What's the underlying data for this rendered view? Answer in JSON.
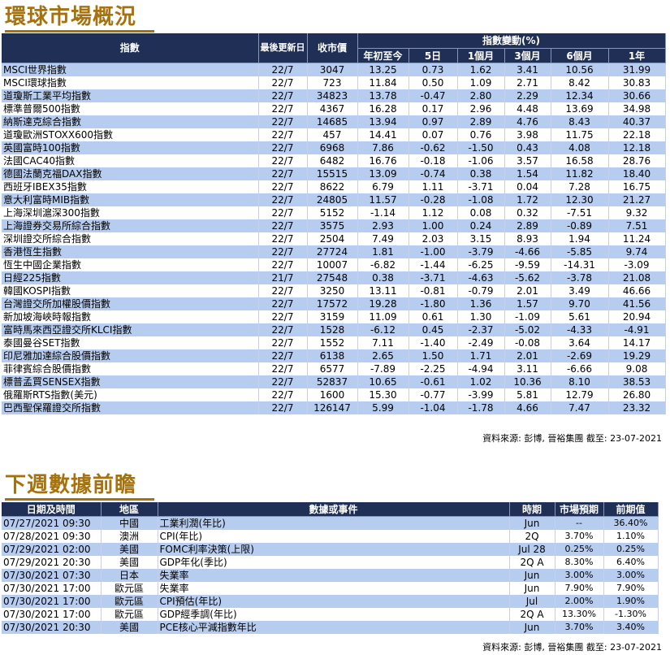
{
  "market": {
    "title": "環球市場概況",
    "headers": {
      "index": "指數",
      "updated": "最後更新日",
      "close": "收市價",
      "change_group": "指數變動(%)",
      "ytd": "年初至今",
      "d5": "5日",
      "m1": "1個月",
      "m3": "3個月",
      "m6": "6個月",
      "y1": "1年"
    },
    "rows": [
      {
        "name": "MSCI世界指數",
        "date": "22/7",
        "close": "3047",
        "ytd": "13.25",
        "d5": "0.73",
        "m1": "1.62",
        "m3": "3.41",
        "m6": "10.56",
        "y1": "31.99"
      },
      {
        "name": "MSCI環球指數",
        "date": "22/7",
        "close": "723",
        "ytd": "11.84",
        "d5": "0.50",
        "m1": "1.09",
        "m3": "2.71",
        "m6": "8.42",
        "y1": "30.83"
      },
      {
        "name": "道瓊斯工業平均指數",
        "date": "22/7",
        "close": "34823",
        "ytd": "13.78",
        "d5": "-0.47",
        "m1": "2.80",
        "m3": "2.29",
        "m6": "12.34",
        "y1": "30.66"
      },
      {
        "name": "標準普爾500指數",
        "date": "22/7",
        "close": "4367",
        "ytd": "16.28",
        "d5": "0.17",
        "m1": "2.96",
        "m3": "4.48",
        "m6": "13.69",
        "y1": "34.98"
      },
      {
        "name": "納斯達克綜合指數",
        "date": "22/7",
        "close": "14685",
        "ytd": "13.94",
        "d5": "0.97",
        "m1": "2.89",
        "m3": "4.76",
        "m6": "8.43",
        "y1": "40.37"
      },
      {
        "name": "道瓊歐洲STOXX600指數",
        "date": "22/7",
        "close": "457",
        "ytd": "14.41",
        "d5": "0.07",
        "m1": "0.76",
        "m3": "3.98",
        "m6": "11.75",
        "y1": "22.18"
      },
      {
        "name": "英國富時100指數",
        "date": "22/7",
        "close": "6968",
        "ytd": "7.86",
        "d5": "-0.62",
        "m1": "-1.50",
        "m3": "0.43",
        "m6": "4.08",
        "y1": "12.18"
      },
      {
        "name": "法國CAC40指數",
        "date": "22/7",
        "close": "6482",
        "ytd": "16.76",
        "d5": "-0.18",
        "m1": "-1.06",
        "m3": "3.57",
        "m6": "16.58",
        "y1": "28.76"
      },
      {
        "name": "德國法蘭克福DAX指數",
        "date": "22/7",
        "close": "15515",
        "ytd": "13.09",
        "d5": "-0.74",
        "m1": "0.38",
        "m3": "1.54",
        "m6": "11.82",
        "y1": "18.40"
      },
      {
        "name": "西班牙IBEX35指數",
        "date": "22/7",
        "close": "8622",
        "ytd": "6.79",
        "d5": "1.11",
        "m1": "-3.71",
        "m3": "0.04",
        "m6": "7.28",
        "y1": "16.75"
      },
      {
        "name": "意大利富時MIB指數",
        "date": "22/7",
        "close": "24805",
        "ytd": "11.57",
        "d5": "-0.28",
        "m1": "-1.08",
        "m3": "1.72",
        "m6": "12.30",
        "y1": "21.27"
      },
      {
        "name": "上海深圳滬深300指數",
        "date": "22/7",
        "close": "5152",
        "ytd": "-1.14",
        "d5": "1.12",
        "m1": "0.08",
        "m3": "0.32",
        "m6": "-7.51",
        "y1": "9.32"
      },
      {
        "name": "上海證券交易所綜合指數",
        "date": "22/7",
        "close": "3575",
        "ytd": "2.93",
        "d5": "1.00",
        "m1": "0.24",
        "m3": "2.89",
        "m6": "-0.89",
        "y1": "7.51"
      },
      {
        "name": "深圳證交所綜合指數",
        "date": "22/7",
        "close": "2504",
        "ytd": "7.49",
        "d5": "2.03",
        "m1": "3.15",
        "m3": "8.93",
        "m6": "1.94",
        "y1": "11.24"
      },
      {
        "name": "香港恆生指數",
        "date": "22/7",
        "close": "27724",
        "ytd": "1.81",
        "d5": "-1.00",
        "m1": "-3.79",
        "m3": "-4.66",
        "m6": "-5.85",
        "y1": "9.74"
      },
      {
        "name": "恆生中國企業指數",
        "date": "22/7",
        "close": "10007",
        "ytd": "-6.82",
        "d5": "-1.44",
        "m1": "-6.25",
        "m3": "-9.59",
        "m6": "-14.31",
        "y1": "-3.09"
      },
      {
        "name": "日經225指數",
        "date": "21/7",
        "close": "27548",
        "ytd": "0.38",
        "d5": "-3.71",
        "m1": "-4.63",
        "m3": "-5.62",
        "m6": "-3.78",
        "y1": "21.08"
      },
      {
        "name": "韓國KOSPI指數",
        "date": "22/7",
        "close": "3250",
        "ytd": "13.11",
        "d5": "-0.81",
        "m1": "-0.79",
        "m3": "2.01",
        "m6": "3.49",
        "y1": "46.66"
      },
      {
        "name": "台灣證交所加權股價指數",
        "date": "22/7",
        "close": "17572",
        "ytd": "19.28",
        "d5": "-1.80",
        "m1": "1.36",
        "m3": "1.57",
        "m6": "9.70",
        "y1": "41.56"
      },
      {
        "name": "新加坡海峽時報指數",
        "date": "22/7",
        "close": "3159",
        "ytd": "11.09",
        "d5": "0.61",
        "m1": "1.30",
        "m3": "-1.09",
        "m6": "5.61",
        "y1": "20.94"
      },
      {
        "name": "富時馬來西亞證交所KLCI指數",
        "date": "22/7",
        "close": "1528",
        "ytd": "-6.12",
        "d5": "0.45",
        "m1": "-2.37",
        "m3": "-5.02",
        "m6": "-4.33",
        "y1": "-4.91"
      },
      {
        "name": "泰國曼谷SET指數",
        "date": "22/7",
        "close": "1552",
        "ytd": "7.11",
        "d5": "-1.40",
        "m1": "-2.49",
        "m3": "-0.08",
        "m6": "3.64",
        "y1": "14.17"
      },
      {
        "name": "印尼雅加達綜合股價指數",
        "date": "22/7",
        "close": "6138",
        "ytd": "2.65",
        "d5": "1.50",
        "m1": "1.71",
        "m3": "2.01",
        "m6": "-2.69",
        "y1": "19.29"
      },
      {
        "name": "菲律賓綜合股價指數",
        "date": "22/7",
        "close": "6577",
        "ytd": "-7.89",
        "d5": "-2.25",
        "m1": "-4.94",
        "m3": "3.11",
        "m6": "-6.66",
        "y1": "9.08"
      },
      {
        "name": "標普孟買SENSEX指數",
        "date": "22/7",
        "close": "52837",
        "ytd": "10.65",
        "d5": "-0.61",
        "m1": "1.02",
        "m3": "10.36",
        "m6": "8.10",
        "y1": "38.53"
      },
      {
        "name": "俄羅斯RTS指數(美元)",
        "date": "22/7",
        "close": "1600",
        "ytd": "15.30",
        "d5": "-0.77",
        "m1": "-3.99",
        "m3": "5.81",
        "m6": "12.79",
        "y1": "26.80"
      },
      {
        "name": "巴西聖保羅證交所指數",
        "date": "22/7",
        "close": "126147",
        "ytd": "5.99",
        "d5": "-1.04",
        "m1": "-1.78",
        "m3": "4.66",
        "m6": "7.47",
        "y1": "23.32"
      }
    ],
    "source": "資料來源: 彭博, 晉裕集團 截至: 23-07-2021"
  },
  "calendar": {
    "title": "下週數據前瞻",
    "headers": {
      "datetime": "日期及時間",
      "region": "地區",
      "event": "數據或事件",
      "period": "時期",
      "forecast": "市場預期",
      "previous": "前期值"
    },
    "rows": [
      {
        "datetime": "07/27/2021 09:30",
        "region": "中國",
        "event": "工業利潤(年比)",
        "period": "Jun",
        "forecast": "--",
        "previous": "36.40%"
      },
      {
        "datetime": "07/28/2021 09:30",
        "region": "澳洲",
        "event": "CPI(年比)",
        "period": "2Q",
        "forecast": "3.70%",
        "previous": "1.10%"
      },
      {
        "datetime": "07/29/2021 02:00",
        "region": "美國",
        "event": "FOMC利率決策(上限)",
        "period": "Jul 28",
        "forecast": "0.25%",
        "previous": "0.25%"
      },
      {
        "datetime": "07/29/2021 20:30",
        "region": "美國",
        "event": "GDP年化(季比)",
        "period": "2Q A",
        "forecast": "8.30%",
        "previous": "6.40%"
      },
      {
        "datetime": "07/30/2021 07:30",
        "region": "日本",
        "event": "失業率",
        "period": "Jun",
        "forecast": "3.00%",
        "previous": "3.00%"
      },
      {
        "datetime": "07/30/2021 17:00",
        "region": "歐元區",
        "event": "失業率",
        "period": "Jun",
        "forecast": "7.90%",
        "previous": "7.90%"
      },
      {
        "datetime": "07/30/2021 17:00",
        "region": "歐元區",
        "event": "CPI預估(年比)",
        "period": "Jul",
        "forecast": "2.00%",
        "previous": "1.90%"
      },
      {
        "datetime": "07/30/2021 17:00",
        "region": "歐元區",
        "event": "GDP經季調(年比)",
        "period": "2Q A",
        "forecast": "13.30%",
        "previous": "-1.30%"
      },
      {
        "datetime": "07/30/2021 20:30",
        "region": "美國",
        "event": "PCE核心平減指數年比",
        "period": "Jun",
        "forecast": "3.70%",
        "previous": "3.40%"
      }
    ],
    "source": "資料來源: 彭博, 晉裕集團 截至: 23-07-2021"
  }
}
